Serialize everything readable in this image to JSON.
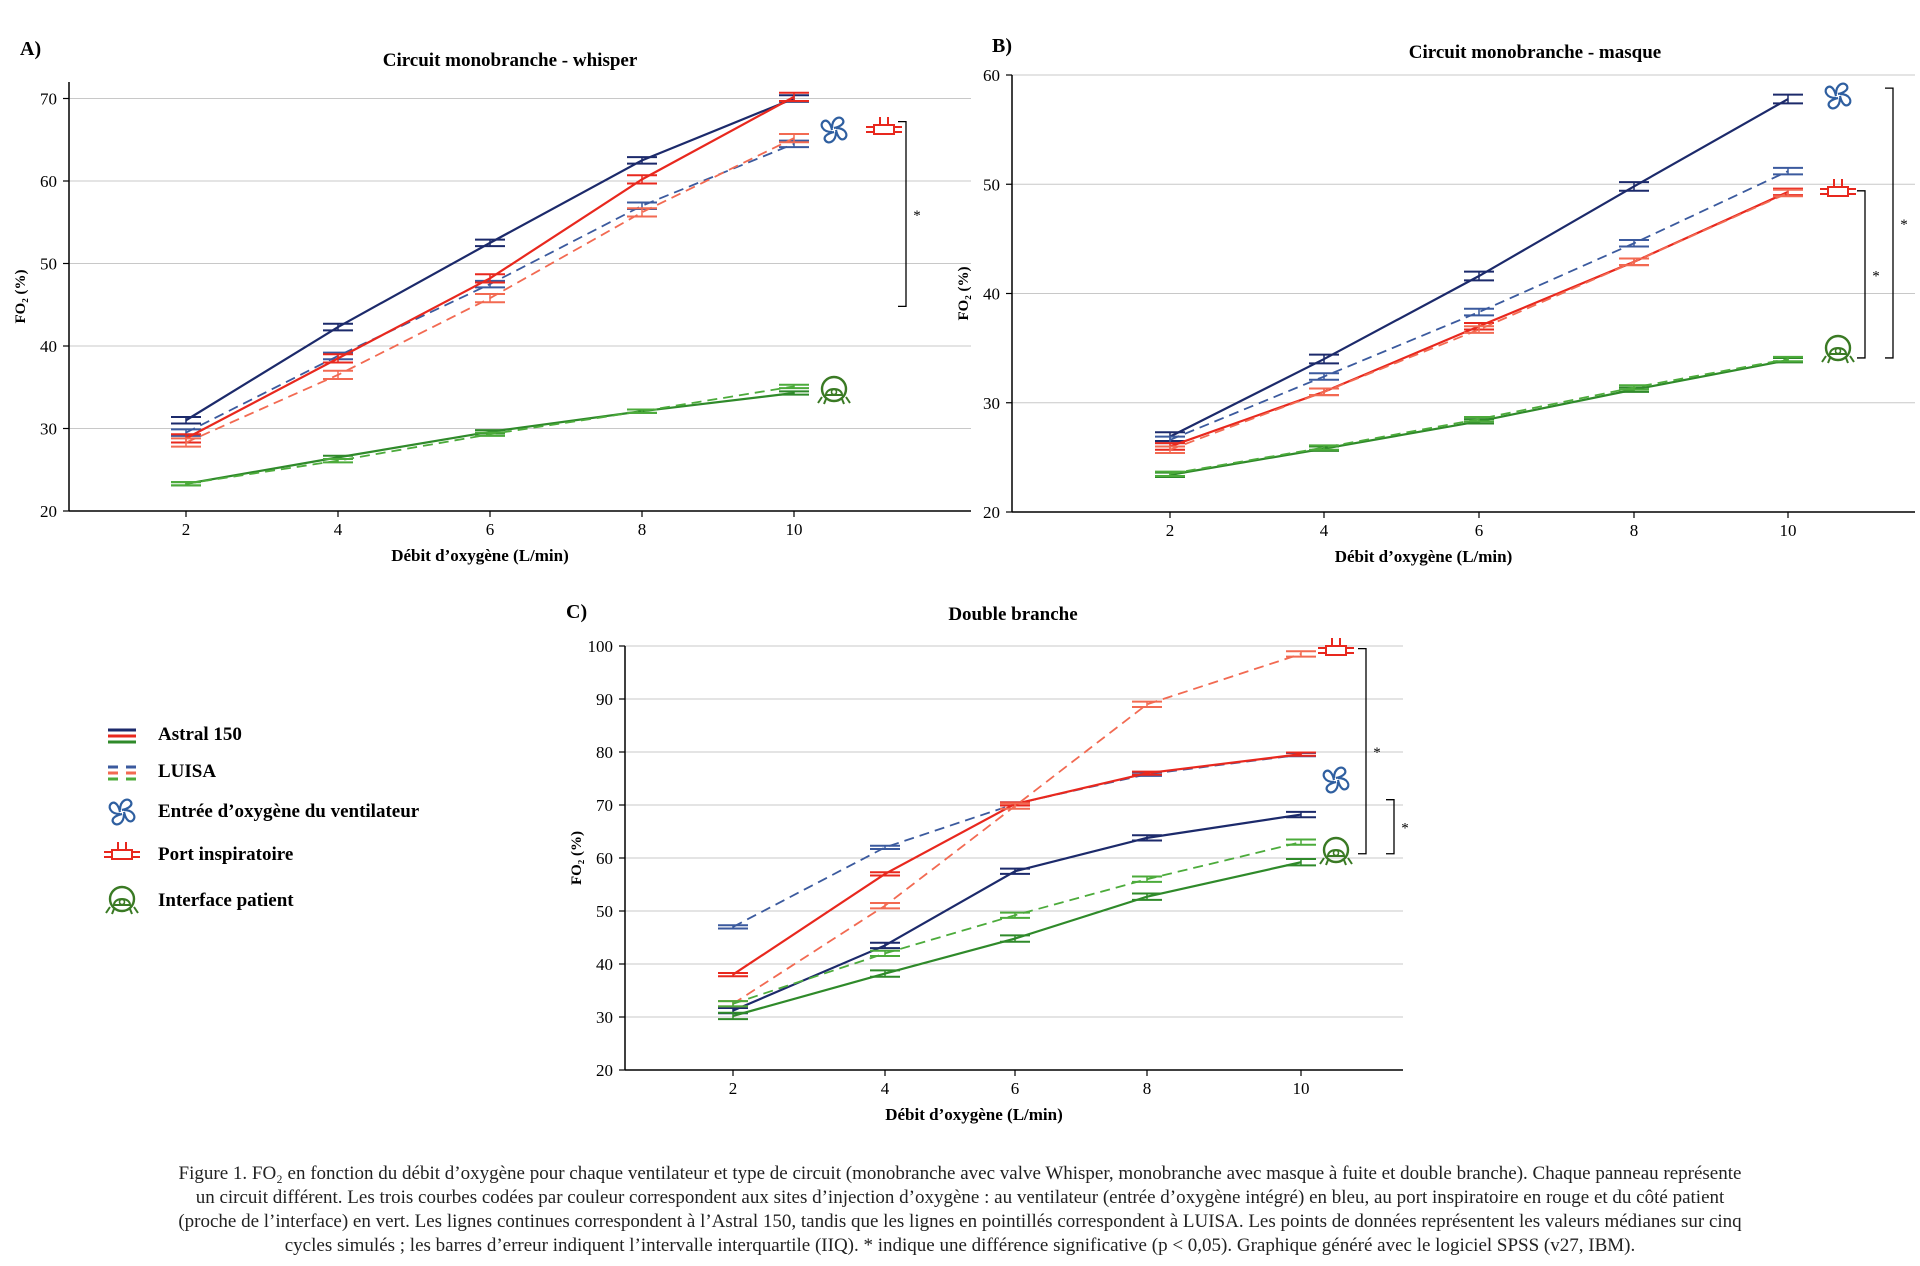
{
  "caption": {
    "lines": [
      "Figure 1. FO₂ en fonction du débit d’oxygène pour chaque ventilateur et type de circuit (monobranche avec valve Whisper, monobranche avec masque à fuite et double branche). Chaque panneau représente",
      "un circuit différent. Les trois courbes codées par couleur correspondent aux sites d’injection d’oxygène : au ventilateur (entrée d’oxygène intégré) en bleu, au port inspiratoire en rouge et du côté patient",
      "(proche de l’interface) en vert. Les lignes continues correspondent à l’Astral 150, tandis que les lignes en pointillés correspondent à LUISA. Les points de données représentent les valeurs médianes sur cinq",
      "cycles simulés ; les barres d’erreur indiquent l’intervalle interquartile (IIQ). * indique une différence significative (p < 0,05). Graphique généré avec le logiciel SPSS (v27, IBM)."
    ]
  },
  "legend": {
    "items": [
      {
        "key": "astral",
        "label": "Astral 150"
      },
      {
        "key": "luisa",
        "label": "LUISA"
      },
      {
        "key": "fan",
        "label": "Entrée d’oxygène du ventilateur",
        "icon": "fan-icon"
      },
      {
        "key": "port",
        "label": "Port inspiratoire",
        "icon": "port-icon"
      },
      {
        "key": "mask",
        "label": "Interface patient",
        "icon": "mask-icon"
      }
    ],
    "placement": "left, beside panel C"
  },
  "colors": {
    "blue": "#1c2a6b",
    "blue_light": "#3b5a9e",
    "red": "#e8281e",
    "red_light": "#f26a52",
    "green": "#2f8a2a",
    "green_light": "#4cab3b",
    "grid": "#c8c8c8",
    "icon_blue": "#2f5fa0",
    "icon_red": "#e8281e",
    "icon_green": "#3a7a24"
  },
  "chart_data": [
    {
      "panel": "A)",
      "type": "line",
      "title": "Circuit monobranche - whisper",
      "xlabel": "Débit d’oxygène (L/min)",
      "ylabel": "FO₂ (%)",
      "x": [
        2,
        4,
        6,
        8,
        10
      ],
      "x_ticks": [
        "2",
        "4",
        "6",
        "8",
        "10"
      ],
      "ylim": [
        20,
        72
      ],
      "y_ticks": [
        "20",
        "30",
        "40",
        "50",
        "60",
        "70"
      ],
      "grid": "horizontal",
      "series": [
        {
          "ventilator": "astral",
          "site": "fan",
          "values": [
            31,
            42.3,
            52.5,
            62.5,
            70
          ],
          "iqr": 0.4
        },
        {
          "ventilator": "luisa",
          "site": "fan",
          "values": [
            29.5,
            38.8,
            47.5,
            57,
            64.5
          ],
          "iqr": 0.4
        },
        {
          "ventilator": "astral",
          "site": "port",
          "values": [
            28.8,
            38.5,
            48.2,
            60.2,
            70.2
          ],
          "iqr": 0.5
        },
        {
          "ventilator": "luisa",
          "site": "port",
          "values": [
            28.3,
            36.5,
            45.8,
            56.2,
            65.2
          ],
          "iqr": 0.5
        },
        {
          "ventilator": "astral",
          "site": "mask",
          "values": [
            23.3,
            26.5,
            29.6,
            32.1,
            34.3
          ],
          "iqr": 0.2
        },
        {
          "ventilator": "luisa",
          "site": "mask",
          "values": [
            23.3,
            26.1,
            29.3,
            32.1,
            35.1
          ],
          "iqr": 0.2
        }
      ],
      "significance": [
        {
          "from": 67.2,
          "to": 44.8,
          "label": "*"
        }
      ]
    },
    {
      "panel": "B)",
      "type": "line",
      "title": "Circuit monobranche - masque",
      "xlabel": "Débit d’oxygène (L/min)",
      "ylabel": "FO₂ (%)",
      "x": [
        2,
        4,
        6,
        8,
        10
      ],
      "x_ticks": [
        "2",
        "4",
        "6",
        "8",
        "10"
      ],
      "ylim": [
        20,
        60
      ],
      "y_ticks": [
        "20",
        "30",
        "40",
        "50",
        "60"
      ],
      "grid": "horizontal",
      "series": [
        {
          "ventilator": "astral",
          "site": "fan",
          "values": [
            26.9,
            34,
            41.6,
            49.8,
            57.8
          ],
          "iqr": 0.4
        },
        {
          "ventilator": "luisa",
          "site": "fan",
          "values": [
            26.6,
            32.4,
            38.3,
            44.6,
            51.2
          ],
          "iqr": 0.3
        },
        {
          "ventilator": "astral",
          "site": "port",
          "values": [
            26,
            31,
            37,
            42.9,
            49.3
          ],
          "iqr": 0.3
        },
        {
          "ventilator": "luisa",
          "site": "port",
          "values": [
            25.7,
            31,
            36.7,
            42.9,
            49.2
          ],
          "iqr": 0.3
        },
        {
          "ventilator": "astral",
          "site": "mask",
          "values": [
            23.4,
            25.8,
            28.3,
            31.2,
            33.9
          ],
          "iqr": 0.2
        },
        {
          "ventilator": "luisa",
          "site": "mask",
          "values": [
            23.5,
            25.9,
            28.5,
            31.4,
            34
          ],
          "iqr": 0.2
        }
      ],
      "significance": [
        {
          "from": 49.4,
          "to": 34.1,
          "label": "*"
        },
        {
          "from": 58.8,
          "to": 34.1,
          "label": "*"
        }
      ]
    },
    {
      "panel": "C)",
      "type": "line",
      "title": "Double branche",
      "xlabel": "Débit d’oxygène (L/min)",
      "ylabel": "FO₂ (%)",
      "x": [
        2,
        4,
        6,
        8,
        10
      ],
      "x_ticks": [
        "2",
        "4",
        "6",
        "8",
        "10"
      ],
      "ylim": [
        20,
        100
      ],
      "y_ticks": [
        "20",
        "30",
        "40",
        "50",
        "60",
        "70",
        "80",
        "90",
        "100"
      ],
      "grid": "horizontal",
      "series": [
        {
          "ventilator": "astral",
          "site": "fan",
          "values": [
            31.2,
            43.5,
            57.5,
            63.8,
            68.2
          ],
          "iqr": 0.5
        },
        {
          "ventilator": "luisa",
          "site": "fan",
          "values": [
            47,
            62,
            70.2,
            75.8,
            79.5
          ],
          "iqr": 0.3
        },
        {
          "ventilator": "astral",
          "site": "port",
          "values": [
            38,
            57,
            70.2,
            76,
            79.6
          ],
          "iqr": 0.3
        },
        {
          "ventilator": "luisa",
          "site": "port",
          "values": [
            32.5,
            51,
            69.8,
            89,
            98.5
          ],
          "iqr": 0.5
        },
        {
          "ventilator": "astral",
          "site": "mask",
          "values": [
            30.2,
            38.2,
            44.8,
            52.7,
            59.2
          ],
          "iqr": 0.6
        },
        {
          "ventilator": "luisa",
          "site": "mask",
          "values": [
            32.5,
            42,
            49.2,
            56,
            63
          ],
          "iqr": 0.5
        }
      ],
      "significance": [
        {
          "from": 99.5,
          "to": 60.8,
          "label": "*"
        },
        {
          "from": 71,
          "to": 60.8,
          "label": "*"
        }
      ]
    }
  ]
}
